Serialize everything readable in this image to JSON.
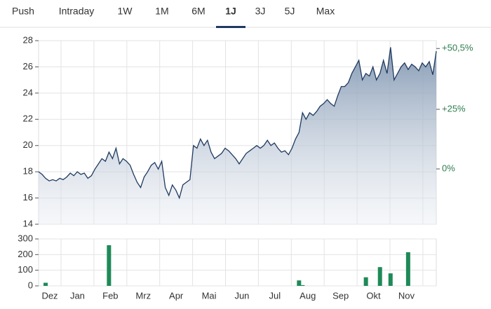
{
  "tabs": [
    "Push",
    "Intraday",
    "1W",
    "1M",
    "6M",
    "1J",
    "3J",
    "5J",
    "Max"
  ],
  "active_tab": 5,
  "chart_data": {
    "type": "line",
    "xlim": [
      0,
      113
    ],
    "months": [
      "Dez",
      "Jan",
      "Feb",
      "Mrz",
      "Apr",
      "Mai",
      "Jun",
      "Jul",
      "Aug",
      "Sep",
      "Okt",
      "Nov"
    ],
    "series": [
      {
        "color": "#1f3a60",
        "values": [
          18.0,
          17.8,
          17.5,
          17.3,
          17.4,
          17.3,
          17.5,
          17.4,
          17.6,
          17.9,
          17.7,
          18.0,
          17.8,
          17.9,
          17.5,
          17.7,
          18.2,
          18.6,
          19.0,
          18.8,
          19.5,
          19.0,
          19.8,
          18.6,
          19.0,
          18.8,
          18.5,
          17.8,
          17.2,
          16.8,
          17.6,
          18.0,
          18.5,
          18.7,
          18.2,
          18.8,
          16.8,
          16.2,
          17.0,
          16.6,
          16.0,
          17.0,
          17.2,
          17.4,
          20.0,
          19.8,
          20.5,
          20.0,
          20.4,
          19.5,
          19.0,
          19.2,
          19.4,
          19.8,
          19.6,
          19.3,
          19.0,
          18.6,
          19.0,
          19.4,
          19.6,
          19.8,
          20.0,
          19.8,
          20.0,
          20.4,
          20.0,
          20.2,
          19.8,
          19.5,
          19.6,
          19.3,
          19.8,
          20.5,
          21.0,
          22.5,
          22.0,
          22.5,
          22.3,
          22.6,
          23.0,
          23.2,
          23.5,
          23.2,
          23.0,
          23.8,
          24.5,
          24.5,
          24.8,
          25.5,
          26.0,
          26.5,
          25.0,
          25.5,
          25.3,
          26.0,
          25.0,
          25.5,
          26.5,
          25.5,
          27.5,
          25.0,
          25.5,
          26.0,
          26.3,
          25.8,
          26.2,
          26.0,
          25.7,
          26.3,
          26.0,
          26.4,
          25.4,
          27.2
        ]
      }
    ],
    "ylim": [
      14,
      28
    ],
    "yticks": [
      14,
      16,
      18,
      20,
      22,
      24,
      26,
      28
    ],
    "y2lim": [
      -23.2,
      53.8
    ],
    "y2ticks": [
      {
        "value": 0,
        "label": "0%"
      },
      {
        "value": 25,
        "label": "+25%"
      },
      {
        "value": 50.5,
        "label": "+50,5%"
      }
    ],
    "volume": {
      "type": "bar",
      "color": "#1e8a57",
      "x": [
        2,
        20,
        74,
        75,
        93,
        97,
        100,
        105
      ],
      "values": [
        20,
        260,
        35,
        5,
        55,
        120,
        80,
        215
      ],
      "ylim": [
        0,
        300
      ],
      "yticks": [
        0,
        100,
        200,
        300
      ]
    },
    "grid": true
  }
}
